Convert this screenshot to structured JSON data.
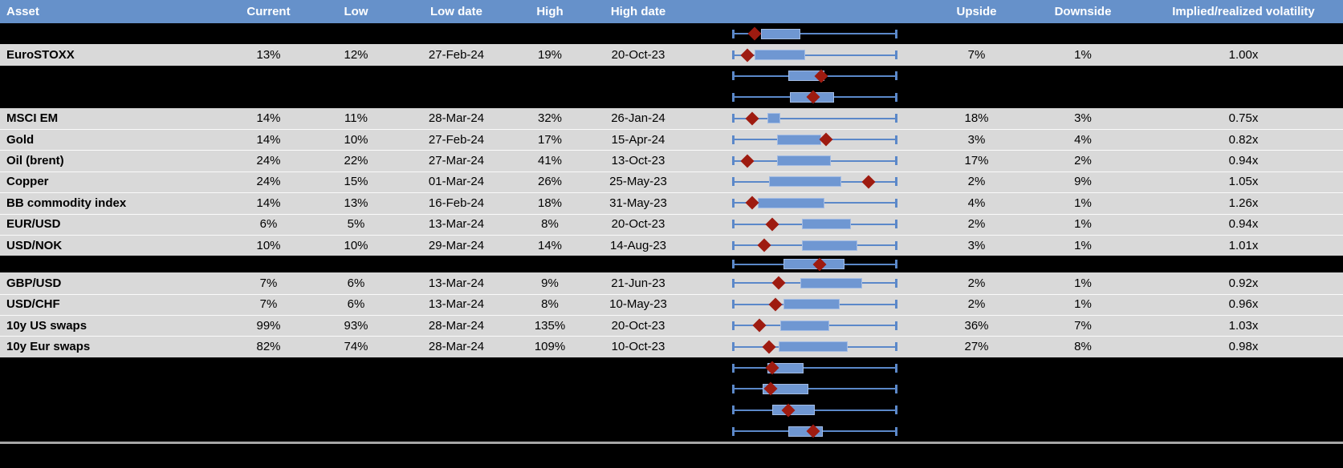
{
  "header": {
    "columns": [
      "Asset",
      "Current",
      "Low",
      "Low date",
      "High",
      "High date",
      "",
      "Upside",
      "Downside",
      "Implied/realized volatility"
    ]
  },
  "rows": [
    {
      "kind": "hidden",
      "box": {
        "lo": 0.17,
        "hi": 0.41,
        "marker": 0.13
      }
    },
    {
      "kind": "asset",
      "name": "EuroSTOXX",
      "current": "13%",
      "low": "12%",
      "low_date": "27-Feb-24",
      "high": "19%",
      "high_date": "20-Oct-23",
      "upside": "7%",
      "downside": "1%",
      "implied_realized": "1.00x",
      "box": {
        "lo": 0.13,
        "hi": 0.44,
        "marker": 0.09
      }
    },
    {
      "kind": "hidden",
      "box": {
        "lo": 0.34,
        "hi": 0.56,
        "marker": 0.54
      }
    },
    {
      "kind": "hidden",
      "box": {
        "lo": 0.35,
        "hi": 0.62,
        "marker": 0.49
      }
    },
    {
      "kind": "asset",
      "name": "MSCI EM",
      "current": "14%",
      "low": "11%",
      "low_date": "28-Mar-24",
      "high": "32%",
      "high_date": "26-Jan-24",
      "upside": "18%",
      "downside": "3%",
      "implied_realized": "0.75x",
      "box": {
        "lo": 0.21,
        "hi": 0.29,
        "marker": 0.12
      }
    },
    {
      "kind": "asset",
      "name": "Gold",
      "current": "14%",
      "low": "10%",
      "low_date": "27-Feb-24",
      "high": "17%",
      "high_date": "15-Apr-24",
      "upside": "3%",
      "downside": "4%",
      "implied_realized": "0.82x",
      "box": {
        "lo": 0.27,
        "hi": 0.54,
        "marker": 0.57
      }
    },
    {
      "kind": "asset",
      "name": "Oil (brent)",
      "current": "24%",
      "low": "22%",
      "low_date": "27-Mar-24",
      "high": "41%",
      "high_date": "13-Oct-23",
      "upside": "17%",
      "downside": "2%",
      "implied_realized": "0.94x",
      "box": {
        "lo": 0.27,
        "hi": 0.6,
        "marker": 0.09
      }
    },
    {
      "kind": "asset",
      "name": "Copper",
      "current": "24%",
      "low": "15%",
      "low_date": "01-Mar-24",
      "high": "26%",
      "high_date": "25-May-23",
      "upside": "2%",
      "downside": "9%",
      "implied_realized": "1.05x",
      "box": {
        "lo": 0.22,
        "hi": 0.66,
        "marker": 0.83
      }
    },
    {
      "kind": "asset",
      "name": "BB commodity index",
      "current": "14%",
      "low": "13%",
      "low_date": "16-Feb-24",
      "high": "18%",
      "high_date": "31-May-23",
      "upside": "4%",
      "downside": "1%",
      "implied_realized": "1.26x",
      "box": {
        "lo": 0.15,
        "hi": 0.56,
        "marker": 0.12
      }
    },
    {
      "kind": "asset",
      "name": "EUR/USD",
      "current": "6%",
      "low": "5%",
      "low_date": "13-Mar-24",
      "high": "8%",
      "high_date": "20-Oct-23",
      "upside": "2%",
      "downside": "1%",
      "implied_realized": "0.94x",
      "box": {
        "lo": 0.42,
        "hi": 0.72,
        "marker": 0.24
      }
    },
    {
      "kind": "asset",
      "name": "USD/NOK",
      "current": "10%",
      "low": "10%",
      "low_date": "29-Mar-24",
      "high": "14%",
      "high_date": "14-Aug-23",
      "upside": "3%",
      "downside": "1%",
      "implied_realized": "1.01x",
      "box": {
        "lo": 0.42,
        "hi": 0.76,
        "marker": 0.19
      }
    },
    {
      "kind": "hidden",
      "thin": true,
      "box": {
        "lo": 0.31,
        "hi": 0.68,
        "marker": 0.53
      }
    },
    {
      "kind": "asset",
      "name": "GBP/USD",
      "current": "7%",
      "low": "6%",
      "low_date": "13-Mar-24",
      "high": "9%",
      "high_date": "21-Jun-23",
      "upside": "2%",
      "downside": "1%",
      "implied_realized": "0.92x",
      "box": {
        "lo": 0.41,
        "hi": 0.79,
        "marker": 0.28
      }
    },
    {
      "kind": "asset",
      "name": "USD/CHF",
      "current": "7%",
      "low": "6%",
      "low_date": "13-Mar-24",
      "high": "8%",
      "high_date": "10-May-23",
      "upside": "2%",
      "downside": "1%",
      "implied_realized": "0.96x",
      "box": {
        "lo": 0.31,
        "hi": 0.65,
        "marker": 0.26
      }
    },
    {
      "kind": "asset",
      "name": "10y US swaps",
      "current": "99%",
      "low": "93%",
      "low_date": "28-Mar-24",
      "high": "135%",
      "high_date": "20-Oct-23",
      "upside": "36%",
      "downside": "7%",
      "implied_realized": "1.03x",
      "box": {
        "lo": 0.29,
        "hi": 0.59,
        "marker": 0.16
      }
    },
    {
      "kind": "asset",
      "name": "10y Eur swaps",
      "current": "82%",
      "low": "74%",
      "low_date": "28-Mar-24",
      "high": "109%",
      "high_date": "10-Oct-23",
      "upside": "27%",
      "downside": "8%",
      "implied_realized": "0.98x",
      "box": {
        "lo": 0.28,
        "hi": 0.7,
        "marker": 0.22
      }
    },
    {
      "kind": "hidden",
      "box": {
        "lo": 0.21,
        "hi": 0.43,
        "marker": 0.24
      }
    },
    {
      "kind": "hidden",
      "box": {
        "lo": 0.18,
        "hi": 0.46,
        "marker": 0.23
      }
    },
    {
      "kind": "hidden",
      "box": {
        "lo": 0.24,
        "hi": 0.5,
        "marker": 0.34
      }
    },
    {
      "kind": "hidden",
      "box": {
        "lo": 0.34,
        "hi": 0.55,
        "marker": 0.49
      }
    }
  ],
  "chart_data": {
    "type": "table",
    "note": "Each row carries an inline horizontal boxplot: whiskers span the 52-week low-high range (0 to 1 normalized), the blue box marks an inner range and the dark-red diamond marks the current level.",
    "columns": [
      "Asset",
      "Current",
      "Low",
      "Low date",
      "High",
      "High date",
      "Upside",
      "Downside",
      "Implied/realized volatility"
    ],
    "records": [
      [
        "EuroSTOXX",
        "13%",
        "12%",
        "27-Feb-24",
        "19%",
        "20-Oct-23",
        "7%",
        "1%",
        "1.00x"
      ],
      [
        "MSCI EM",
        "14%",
        "11%",
        "28-Mar-24",
        "32%",
        "26-Jan-24",
        "18%",
        "3%",
        "0.75x"
      ],
      [
        "Gold",
        "14%",
        "10%",
        "27-Feb-24",
        "17%",
        "15-Apr-24",
        "3%",
        "4%",
        "0.82x"
      ],
      [
        "Oil (brent)",
        "24%",
        "22%",
        "27-Mar-24",
        "41%",
        "13-Oct-23",
        "17%",
        "2%",
        "0.94x"
      ],
      [
        "Copper",
        "24%",
        "15%",
        "01-Mar-24",
        "26%",
        "25-May-23",
        "2%",
        "9%",
        "1.05x"
      ],
      [
        "BB commodity index",
        "14%",
        "13%",
        "16-Feb-24",
        "18%",
        "31-May-23",
        "4%",
        "1%",
        "1.26x"
      ],
      [
        "EUR/USD",
        "6%",
        "5%",
        "13-Mar-24",
        "8%",
        "20-Oct-23",
        "2%",
        "1%",
        "0.94x"
      ],
      [
        "USD/NOK",
        "10%",
        "10%",
        "29-Mar-24",
        "14%",
        "14-Aug-23",
        "3%",
        "1%",
        "1.01x"
      ],
      [
        "GBP/USD",
        "7%",
        "6%",
        "13-Mar-24",
        "9%",
        "21-Jun-23",
        "2%",
        "1%",
        "0.92x"
      ],
      [
        "USD/CHF",
        "7%",
        "6%",
        "13-Mar-24",
        "8%",
        "10-May-23",
        "2%",
        "1%",
        "0.96x"
      ],
      [
        "10y US swaps",
        "99%",
        "93%",
        "28-Mar-24",
        "135%",
        "20-Oct-23",
        "36%",
        "7%",
        "1.03x"
      ],
      [
        "10y Eur swaps",
        "82%",
        "74%",
        "28-Mar-24",
        "109%",
        "10-Oct-23",
        "27%",
        "8%",
        "0.98x"
      ]
    ]
  },
  "colors": {
    "header_bg": "#6691CA",
    "header_text": "#FFFFFF",
    "row_bg": "#D9D9D9",
    "hidden_row_bg": "#000000",
    "whisker_blue": "#5B88C9",
    "box_blue": "#6F97D2",
    "box_border": "#A3BCE4",
    "marker_red": "#9E1B10",
    "separator_gray": "#A6A6A6"
  }
}
